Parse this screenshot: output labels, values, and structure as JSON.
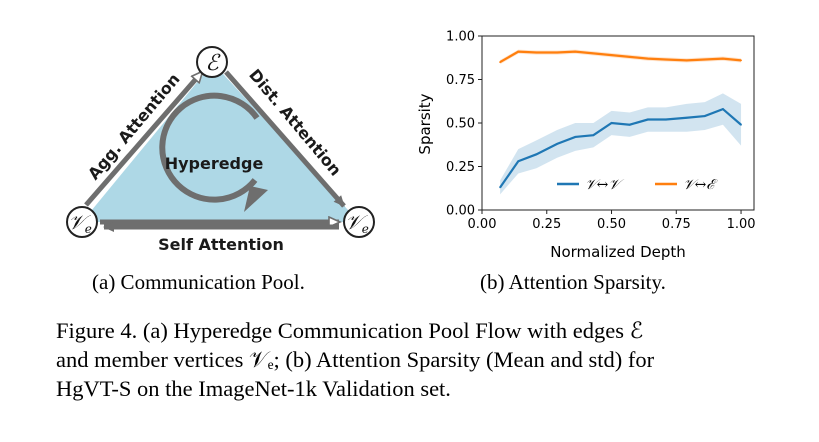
{
  "diagram": {
    "edge_node_label": "ℰ",
    "left_vertex_label": "𝒱",
    "right_vertex_label": "𝒱",
    "vertex_subscript": "e",
    "center_label": "Hyperedge",
    "left_edge_label": "Agg. Attention",
    "right_edge_label": "Dist. Attention",
    "bottom_edge_label": "Self Attention",
    "colors": {
      "fill": "#aed8e6",
      "arrow": "#6e6e6e",
      "text": "#1a1a1a"
    }
  },
  "subcaptions": {
    "a": "(a) Communication Pool.",
    "b": "(b) Attention Sparsity."
  },
  "caption": {
    "line1": "Figure 4. (a) Hyperedge Communication Pool Flow with edges ℰ",
    "line2": "and member vertices 𝒱ₑ; (b) Attention Sparsity (Mean and std) for",
    "line3": "HgVT-S on the ImageNet-1k Validation set."
  },
  "chart_data": {
    "type": "line",
    "xlabel": "Normalized Depth",
    "ylabel": "Sparsity",
    "xlim": [
      0,
      1.05
    ],
    "ylim": [
      0,
      1.0
    ],
    "xticks": [
      "0.00",
      "0.25",
      "0.50",
      "0.75",
      "1.00"
    ],
    "yticks": [
      "0.00",
      "0.25",
      "0.50",
      "0.75",
      "1.00"
    ],
    "legend_position": "lower-right",
    "series": [
      {
        "name": "𝒱↔𝒱",
        "color": "#1f77b4",
        "x": [
          0.07,
          0.14,
          0.21,
          0.29,
          0.36,
          0.43,
          0.5,
          0.57,
          0.64,
          0.71,
          0.79,
          0.86,
          0.93,
          1.0
        ],
        "y": [
          0.13,
          0.28,
          0.32,
          0.38,
          0.42,
          0.43,
          0.5,
          0.49,
          0.52,
          0.52,
          0.53,
          0.54,
          0.58,
          0.49
        ],
        "std": [
          0.04,
          0.07,
          0.08,
          0.08,
          0.08,
          0.07,
          0.07,
          0.07,
          0.07,
          0.07,
          0.08,
          0.08,
          0.09,
          0.12
        ]
      },
      {
        "name": "𝒱↔ℰ",
        "color": "#ff7f0e",
        "x": [
          0.07,
          0.14,
          0.21,
          0.29,
          0.36,
          0.43,
          0.5,
          0.57,
          0.64,
          0.71,
          0.79,
          0.86,
          0.93,
          1.0
        ],
        "y": [
          0.85,
          0.91,
          0.905,
          0.905,
          0.91,
          0.9,
          0.89,
          0.88,
          0.87,
          0.865,
          0.86,
          0.865,
          0.87,
          0.86
        ],
        "std": [
          0.012,
          0.012,
          0.012,
          0.012,
          0.012,
          0.012,
          0.012,
          0.012,
          0.012,
          0.012,
          0.012,
          0.012,
          0.012,
          0.012
        ]
      }
    ]
  }
}
